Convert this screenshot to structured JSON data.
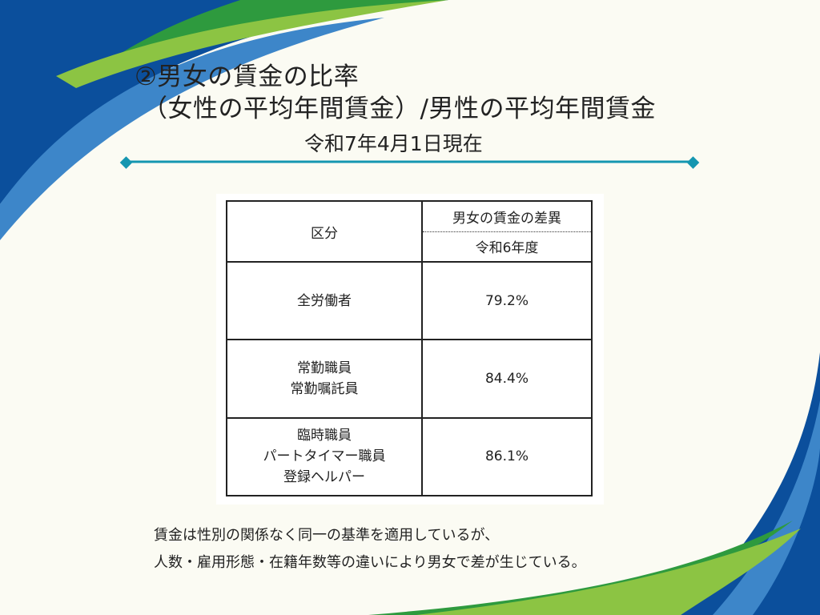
{
  "slide": {
    "title_line1": "②男女の賃金の比率",
    "title_line2": "（女性の平均年間賃金）/男性の平均年間賃金",
    "subtitle": "令和7年4月1日現在"
  },
  "table": {
    "header_category": "区分",
    "header_metric": "男女の賃金の差異",
    "header_year": "令和6年度",
    "rows": [
      {
        "category_lines": [
          "全労働者"
        ],
        "value": "79.2%"
      },
      {
        "category_lines": [
          "常勤職員",
          "常勤嘱託員"
        ],
        "value": "84.4%"
      },
      {
        "category_lines": [
          "臨時職員",
          "パートタイマー職員",
          "登録ヘルパー"
        ],
        "value": "86.1%"
      }
    ]
  },
  "footer": {
    "line1": "賃金は性別の関係なく同一の基準を適用しているが、",
    "line2": "人数・雇用形態・在籍年数等の違いにより男女で差が生じている。"
  },
  "colors": {
    "background": "#fbfbf3",
    "dark_blue": "#0b4f9c",
    "mid_blue": "#3d86c9",
    "green": "#2e9a3e",
    "light_green": "#8cc443",
    "divider_teal": "#1596b0"
  }
}
